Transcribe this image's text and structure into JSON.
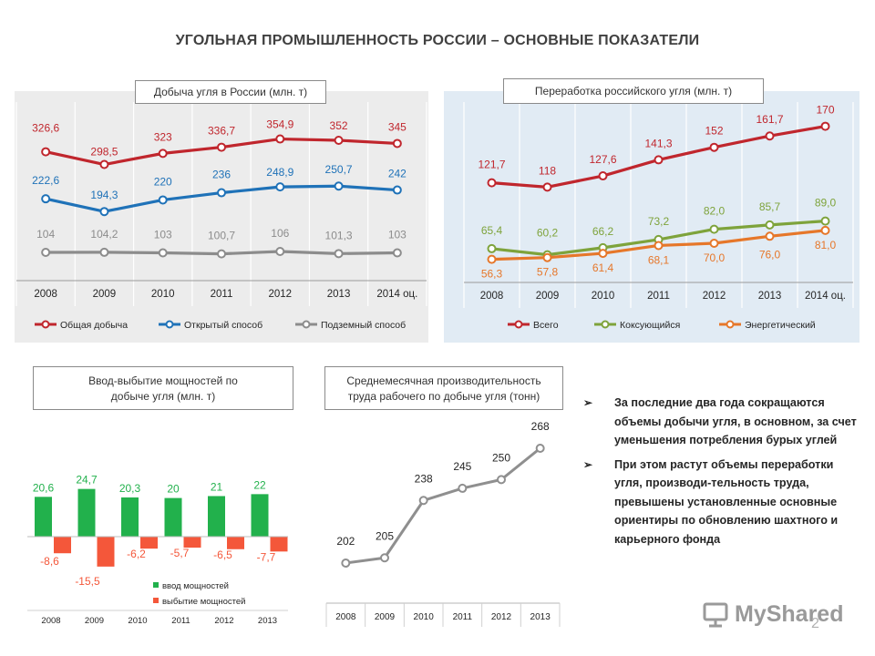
{
  "title": "УГОЛЬНАЯ ПРОМЫШЛЕННОСТЬ  РОССИИ – ОСНОВНЫЕ ПОКАЗАТЕЛИ",
  "colors": {
    "red": "#c0262d",
    "blue": "#1f72b8",
    "gray": "#8c8c8c",
    "green": "#7ea33b",
    "orange": "#e6772a",
    "bar_green": "#22b14c",
    "bar_red": "#f4573a",
    "line_gray": "#8f8f8f",
    "panel_gray": "#ececec",
    "panel_blue": "#e1ebf4"
  },
  "chart_data": [
    {
      "id": "production",
      "type": "line",
      "title": "Добыча угля в России (млн. т)",
      "categories": [
        "2008",
        "2009",
        "2010",
        "2011",
        "2012",
        "2013",
        "2014 оц."
      ],
      "series": [
        {
          "name": "Общая добыча",
          "color": "#c0262d",
          "values": [
            326.6,
            298.5,
            323,
            336.7,
            354.9,
            352,
            345
          ],
          "labels": [
            "326,6",
            "298,5",
            "323",
            "336,7",
            "354,9",
            "352",
            "345"
          ]
        },
        {
          "name": "Открытый способ",
          "color": "#1f72b8",
          "values": [
            222.6,
            194.3,
            220,
            236,
            248.9,
            250.7,
            242
          ],
          "labels": [
            "222,6",
            "194,3",
            "220",
            "236",
            "248,9",
            "250,7",
            "242"
          ]
        },
        {
          "name": "Подземный способ",
          "color": "#8c8c8c",
          "values": [
            104,
            104.2,
            103,
            100.7,
            106,
            101.3,
            103
          ],
          "labels": [
            "104",
            "104,2",
            "103",
            "100,7",
            "106",
            "101,3",
            "103"
          ]
        }
      ],
      "grid": true,
      "legend": "bottom"
    },
    {
      "id": "processing",
      "type": "line",
      "title": "Переработка российского угля (млн. т)",
      "categories": [
        "2008",
        "2009",
        "2010",
        "2011",
        "2012",
        "2013",
        "2014 оц."
      ],
      "series": [
        {
          "name": "Всего",
          "color": "#c0262d",
          "values": [
            121.7,
            118,
            127.6,
            141.3,
            152,
            161.7,
            170
          ],
          "labels": [
            "121,7",
            "118",
            "127,6",
            "141,3",
            "152",
            "161,7",
            "170"
          ]
        },
        {
          "name": "Коксующийся",
          "color": "#7ea33b",
          "values": [
            65.4,
            60.2,
            66.2,
            73.2,
            82.0,
            85.7,
            89.0
          ],
          "labels": [
            "65,4",
            "60,2",
            "66,2",
            "73,2",
            "82,0",
            "85,7",
            "89,0"
          ]
        },
        {
          "name": "Энергетический",
          "color": "#e6772a",
          "values": [
            56.3,
            57.8,
            61.4,
            68.1,
            70.0,
            76.0,
            81.0
          ],
          "labels": [
            "56,3",
            "57,8",
            "61,4",
            "68,1",
            "70,0",
            "76,0",
            "81,0"
          ]
        }
      ],
      "grid": true,
      "legend": "bottom"
    },
    {
      "id": "capacity",
      "type": "bar",
      "title": "Ввод-выбытие мощностей по добыче угля (млн. т)",
      "categories": [
        "2008",
        "2009",
        "2010",
        "2011",
        "2012",
        "2013"
      ],
      "series": [
        {
          "name": "ввод мощностей",
          "color": "#22b14c",
          "values": [
            20.6,
            24.7,
            20.3,
            20,
            21,
            22
          ],
          "labels": [
            "20,6",
            "24,7",
            "20,3",
            "20",
            "21",
            "22"
          ]
        },
        {
          "name": "выбытие мощностей",
          "color": "#f4573a",
          "values": [
            -8.6,
            -15.5,
            -6.2,
            -5.7,
            -6.5,
            -7.7
          ],
          "labels": [
            "-8,6",
            "-15,5",
            "-6,2",
            "-5,7",
            "-6,5",
            "-7,7"
          ]
        }
      ],
      "legend": "bottom-left"
    },
    {
      "id": "productivity",
      "type": "line",
      "title": "Среднемесячная производительность труда рабочего по добыче угля (тонн)",
      "categories": [
        "2008",
        "2009",
        "2010",
        "2011",
        "2012",
        "2013"
      ],
      "series": [
        {
          "name": "",
          "color": "#8f8f8f",
          "values": [
            202,
            205,
            238,
            245,
            250,
            268
          ],
          "labels": [
            "202",
            "205",
            "238",
            "245",
            "250",
            "268"
          ]
        }
      ]
    }
  ],
  "captions": {
    "production": "Добыча угля в России (млн. т)",
    "processing": "Переработка российского угля (млн. т)",
    "capacity_line1": "Ввод-выбытие мощностей по",
    "capacity_line2": "добыче угля (млн. т)",
    "productivity_line1": "Среднемесячная производительность",
    "productivity_line2": "труда рабочего по добыче угля (тонн)"
  },
  "bullets": [
    {
      "marker": "➢",
      "text": "За последние два года сокращаются объемы добычи угля, в основном, за счет уменьшения потребления бурых углей"
    },
    {
      "marker": "➢",
      "text": "При этом растут объемы переработки угля, производи-тельность труда, превышены установленные основные ориентиры по обновлению шахтного и карьерного фонда"
    }
  ],
  "logo": {
    "text": "MyShared",
    "icon": "presentation-board-icon"
  },
  "page_number": "2"
}
